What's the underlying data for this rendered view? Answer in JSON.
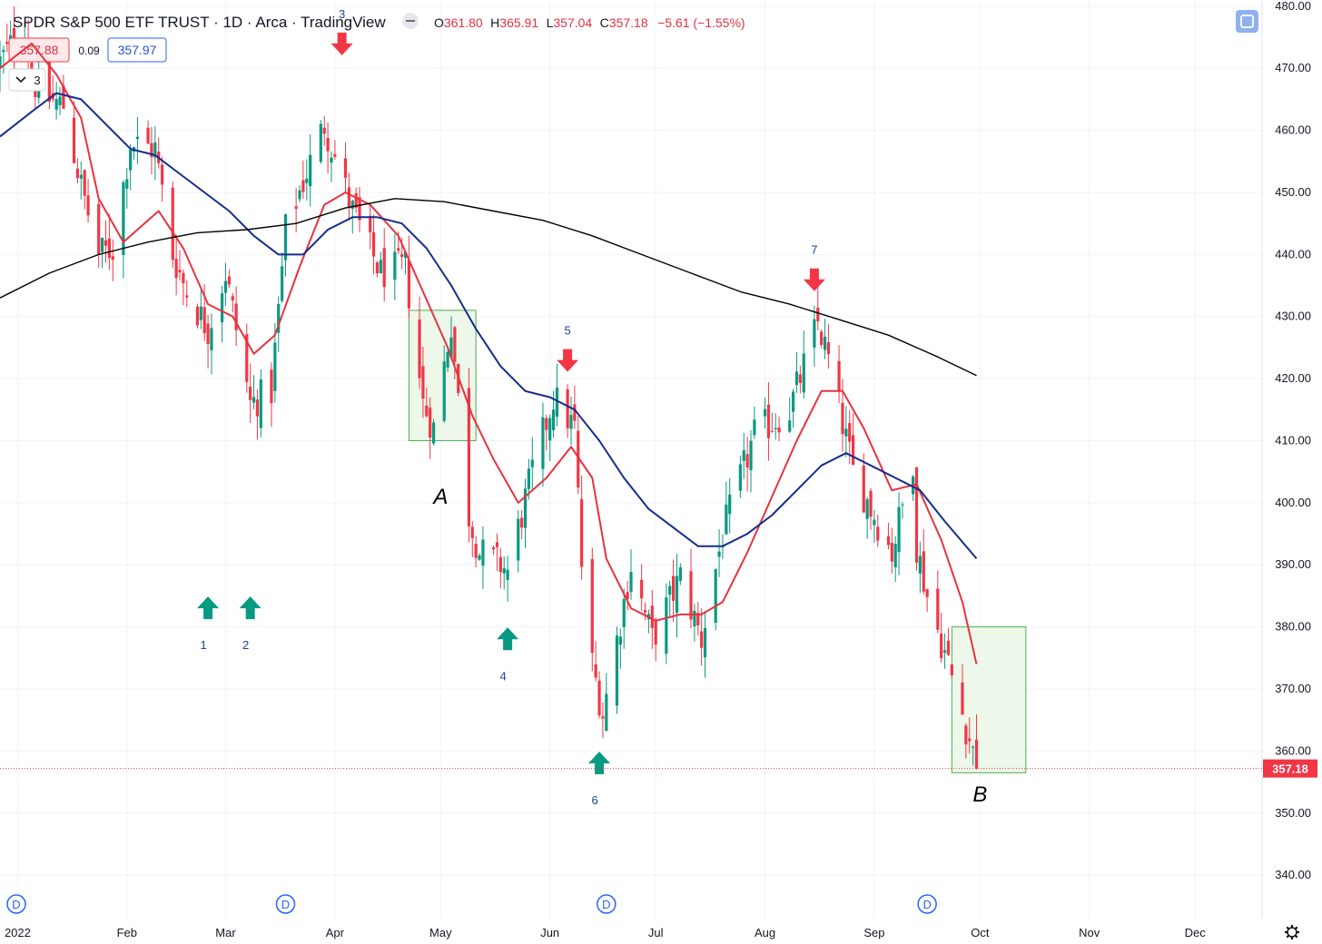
{
  "header": {
    "title": "SPDR S&P 500 ETF TRUST · 1D · Arca · TradingView",
    "ohlc": [
      {
        "label": "O",
        "value": "361.80"
      },
      {
        "label": "H",
        "value": "365.91"
      },
      {
        "label": "L",
        "value": "357.04"
      },
      {
        "label": "C",
        "value": "357.18"
      }
    ],
    "change": "−5.61 (−1.55%)",
    "bid": "357.88",
    "spread": "0.09",
    "ask": "357.97",
    "indicators_count": "3",
    "last_price_tag": "357.18"
  },
  "colors": {
    "up": "#089981",
    "down": "#f23645",
    "ema_fast": "#e8323e",
    "ma_mid": "#152c8c",
    "ma_long": "#000000",
    "grid": "#f0f3fa",
    "highlight_fill": "#eaf6e6",
    "highlight_stroke": "#4caf50",
    "annotation_text": "#1c3fa0"
  },
  "icons": {
    "dividend_marker": "D",
    "collapse_icon": "minus-icon",
    "fullscreen_icon": "fullscreen-icon",
    "settings_icon": "gear-icon"
  },
  "chart_data": {
    "type": "candlestick",
    "ylim": [
      333,
      481
    ],
    "y_ticks": [
      "480.00",
      "470.00",
      "460.00",
      "450.00",
      "440.00",
      "430.00",
      "420.00",
      "410.00",
      "400.00",
      "390.00",
      "380.00",
      "370.00",
      "360.00",
      "350.00",
      "340.00"
    ],
    "x_domain": [
      "2021-12-27",
      "2022-12-20"
    ],
    "x_ticks": [
      {
        "date": "2022-01-01",
        "label": "2022"
      },
      {
        "date": "2022-02-01",
        "label": "Feb"
      },
      {
        "date": "2022-03-01",
        "label": "Mar"
      },
      {
        "date": "2022-04-01",
        "label": "Apr"
      },
      {
        "date": "2022-05-01",
        "label": "May"
      },
      {
        "date": "2022-06-01",
        "label": "Jun"
      },
      {
        "date": "2022-07-01",
        "label": "Jul"
      },
      {
        "date": "2022-08-01",
        "label": "Aug"
      },
      {
        "date": "2022-09-01",
        "label": "Sep"
      },
      {
        "date": "2022-10-01",
        "label": "Oct"
      },
      {
        "date": "2022-11-01",
        "label": "Nov"
      },
      {
        "date": "2022-12-01",
        "label": "Dec"
      }
    ],
    "close_anchors": [
      [
        "2021-12-27",
        471
      ],
      [
        "2022-01-03",
        477
      ],
      [
        "2022-01-05",
        468
      ],
      [
        "2022-01-10",
        465
      ],
      [
        "2022-01-14",
        464
      ],
      [
        "2022-01-19",
        451
      ],
      [
        "2022-01-24",
        440
      ],
      [
        "2022-01-28",
        441
      ],
      [
        "2022-02-02",
        458
      ],
      [
        "2022-02-09",
        457
      ],
      [
        "2022-02-14",
        440
      ],
      [
        "2022-02-18",
        434
      ],
      [
        "2022-02-24",
        428
      ],
      [
        "2022-03-01",
        437
      ],
      [
        "2022-03-08",
        416
      ],
      [
        "2022-03-14",
        418
      ],
      [
        "2022-03-18",
        444
      ],
      [
        "2022-03-29",
        461
      ],
      [
        "2022-04-06",
        447
      ],
      [
        "2022-04-14",
        437
      ],
      [
        "2022-04-21",
        438
      ],
      [
        "2022-04-26",
        416
      ],
      [
        "2022-04-29",
        412
      ],
      [
        "2022-05-04",
        429
      ],
      [
        "2022-05-09",
        398
      ],
      [
        "2022-05-12",
        392
      ],
      [
        "2022-05-18",
        390
      ],
      [
        "2022-05-20",
        389
      ],
      [
        "2022-05-27",
        405
      ],
      [
        "2022-06-02",
        417
      ],
      [
        "2022-06-08",
        412
      ],
      [
        "2022-06-10",
        390
      ],
      [
        "2022-06-13",
        374
      ],
      [
        "2022-06-16",
        366
      ],
      [
        "2022-06-24",
        390
      ],
      [
        "2022-06-30",
        378
      ],
      [
        "2022-07-08",
        388
      ],
      [
        "2022-07-14",
        378
      ],
      [
        "2022-07-20",
        395
      ],
      [
        "2022-07-29",
        411
      ],
      [
        "2022-08-08",
        415
      ],
      [
        "2022-08-16",
        429
      ],
      [
        "2022-08-19",
        423
      ],
      [
        "2022-08-26",
        405
      ],
      [
        "2022-09-06",
        392
      ],
      [
        "2022-09-12",
        407
      ],
      [
        "2022-09-13",
        393
      ],
      [
        "2022-09-16",
        385
      ],
      [
        "2022-09-22",
        374
      ],
      [
        "2022-09-26",
        366
      ],
      [
        "2022-09-28",
        362
      ],
      [
        "2022-09-30",
        357.18
      ]
    ],
    "last_bar": {
      "date": "2022-09-30",
      "open": 361.8,
      "high": 365.91,
      "low": 357.04,
      "close": 357.18
    },
    "series": [
      {
        "type": "line",
        "color": "#e8323e",
        "points": [
          [
            "2021-12-27",
            470
          ],
          [
            "2022-01-05",
            474
          ],
          [
            "2022-01-12",
            469
          ],
          [
            "2022-01-19",
            462
          ],
          [
            "2022-01-24",
            449
          ],
          [
            "2022-01-31",
            442
          ],
          [
            "2022-02-04",
            444
          ],
          [
            "2022-02-10",
            447
          ],
          [
            "2022-02-17",
            441
          ],
          [
            "2022-02-24",
            432
          ],
          [
            "2022-03-03",
            430
          ],
          [
            "2022-03-09",
            424
          ],
          [
            "2022-03-15",
            427
          ],
          [
            "2022-03-22",
            438
          ],
          [
            "2022-03-29",
            448
          ],
          [
            "2022-04-04",
            450
          ],
          [
            "2022-04-11",
            448
          ],
          [
            "2022-04-19",
            443
          ],
          [
            "2022-04-26",
            434
          ],
          [
            "2022-05-03",
            425
          ],
          [
            "2022-05-10",
            414
          ],
          [
            "2022-05-16",
            407
          ],
          [
            "2022-05-23",
            400
          ],
          [
            "2022-05-31",
            404
          ],
          [
            "2022-06-07",
            409
          ],
          [
            "2022-06-13",
            404
          ],
          [
            "2022-06-17",
            391
          ],
          [
            "2022-06-24",
            383
          ],
          [
            "2022-07-01",
            381
          ],
          [
            "2022-07-08",
            382
          ],
          [
            "2022-07-14",
            382
          ],
          [
            "2022-07-20",
            384
          ],
          [
            "2022-07-27",
            392
          ],
          [
            "2022-08-03",
            401
          ],
          [
            "2022-08-10",
            410
          ],
          [
            "2022-08-17",
            418
          ],
          [
            "2022-08-23",
            418
          ],
          [
            "2022-08-29",
            412
          ],
          [
            "2022-09-06",
            402
          ],
          [
            "2022-09-13",
            403
          ],
          [
            "2022-09-20",
            394
          ],
          [
            "2022-09-26",
            384
          ],
          [
            "2022-09-30",
            374
          ]
        ]
      },
      {
        "type": "line",
        "color": "#152c8c",
        "points": [
          [
            "2021-12-27",
            459
          ],
          [
            "2022-01-05",
            463
          ],
          [
            "2022-01-12",
            466
          ],
          [
            "2022-01-19",
            465
          ],
          [
            "2022-01-26",
            461
          ],
          [
            "2022-02-02",
            457
          ],
          [
            "2022-02-09",
            456
          ],
          [
            "2022-02-16",
            453
          ],
          [
            "2022-02-23",
            450
          ],
          [
            "2022-03-02",
            447
          ],
          [
            "2022-03-09",
            443
          ],
          [
            "2022-03-16",
            440
          ],
          [
            "2022-03-23",
            440
          ],
          [
            "2022-03-30",
            444
          ],
          [
            "2022-04-06",
            446
          ],
          [
            "2022-04-13",
            446
          ],
          [
            "2022-04-20",
            445
          ],
          [
            "2022-04-27",
            441
          ],
          [
            "2022-05-04",
            435
          ],
          [
            "2022-05-11",
            428
          ],
          [
            "2022-05-18",
            422
          ],
          [
            "2022-05-25",
            418
          ],
          [
            "2022-06-01",
            417
          ],
          [
            "2022-06-08",
            415
          ],
          [
            "2022-06-15",
            410
          ],
          [
            "2022-06-22",
            404
          ],
          [
            "2022-06-29",
            399
          ],
          [
            "2022-07-06",
            396
          ],
          [
            "2022-07-13",
            393
          ],
          [
            "2022-07-20",
            393
          ],
          [
            "2022-07-27",
            395
          ],
          [
            "2022-08-03",
            398
          ],
          [
            "2022-08-10",
            402
          ],
          [
            "2022-08-17",
            406
          ],
          [
            "2022-08-24",
            408
          ],
          [
            "2022-08-31",
            406
          ],
          [
            "2022-09-07",
            404
          ],
          [
            "2022-09-14",
            402
          ],
          [
            "2022-09-21",
            397
          ],
          [
            "2022-09-30",
            391
          ]
        ]
      },
      {
        "type": "line",
        "color": "#000000",
        "points": [
          [
            "2021-12-27",
            433
          ],
          [
            "2022-01-10",
            437
          ],
          [
            "2022-01-24",
            440
          ],
          [
            "2022-02-07",
            442
          ],
          [
            "2022-02-21",
            443.5
          ],
          [
            "2022-03-07",
            444
          ],
          [
            "2022-03-21",
            445
          ],
          [
            "2022-04-04",
            447.5
          ],
          [
            "2022-04-18",
            449
          ],
          [
            "2022-05-02",
            448.5
          ],
          [
            "2022-05-16",
            447
          ],
          [
            "2022-05-30",
            445.5
          ],
          [
            "2022-06-13",
            443
          ],
          [
            "2022-06-27",
            440
          ],
          [
            "2022-07-11",
            437
          ],
          [
            "2022-07-25",
            434
          ],
          [
            "2022-08-08",
            432
          ],
          [
            "2022-08-22",
            429.5
          ],
          [
            "2022-09-05",
            427
          ],
          [
            "2022-09-19",
            423.5
          ],
          [
            "2022-09-30",
            420.5
          ]
        ]
      }
    ],
    "annotations": [
      {
        "type": "arrow-up",
        "date": "2022-02-24",
        "price": 383,
        "label": "1"
      },
      {
        "type": "arrow-up",
        "date": "2022-03-08",
        "price": 383,
        "label": "2"
      },
      {
        "type": "arrow-down",
        "date": "2022-04-03",
        "price": 474,
        "label": "3"
      },
      {
        "type": "arrow-up",
        "date": "2022-05-20",
        "price": 378,
        "label": "4"
      },
      {
        "type": "arrow-down",
        "date": "2022-06-06",
        "price": 423,
        "label": "5"
      },
      {
        "type": "arrow-up",
        "date": "2022-06-15",
        "price": 358,
        "label": "6"
      },
      {
        "type": "arrow-down",
        "date": "2022-08-15",
        "price": 436,
        "label": "7"
      },
      {
        "type": "text",
        "date": "2022-05-01",
        "price": 401,
        "label": "A"
      },
      {
        "type": "text",
        "date": "2022-10-01",
        "price": 353,
        "label": "B"
      }
    ],
    "highlights": [
      {
        "start": "2022-04-22",
        "end": "2022-05-11",
        "top": 431,
        "bottom": 410
      },
      {
        "start": "2022-09-23",
        "end": "2022-10-14",
        "top": 380,
        "bottom": 356.5
      }
    ],
    "dividend_markers": [
      "2021-12-17",
      "2022-03-18",
      "2022-06-17",
      "2022-09-16"
    ]
  }
}
